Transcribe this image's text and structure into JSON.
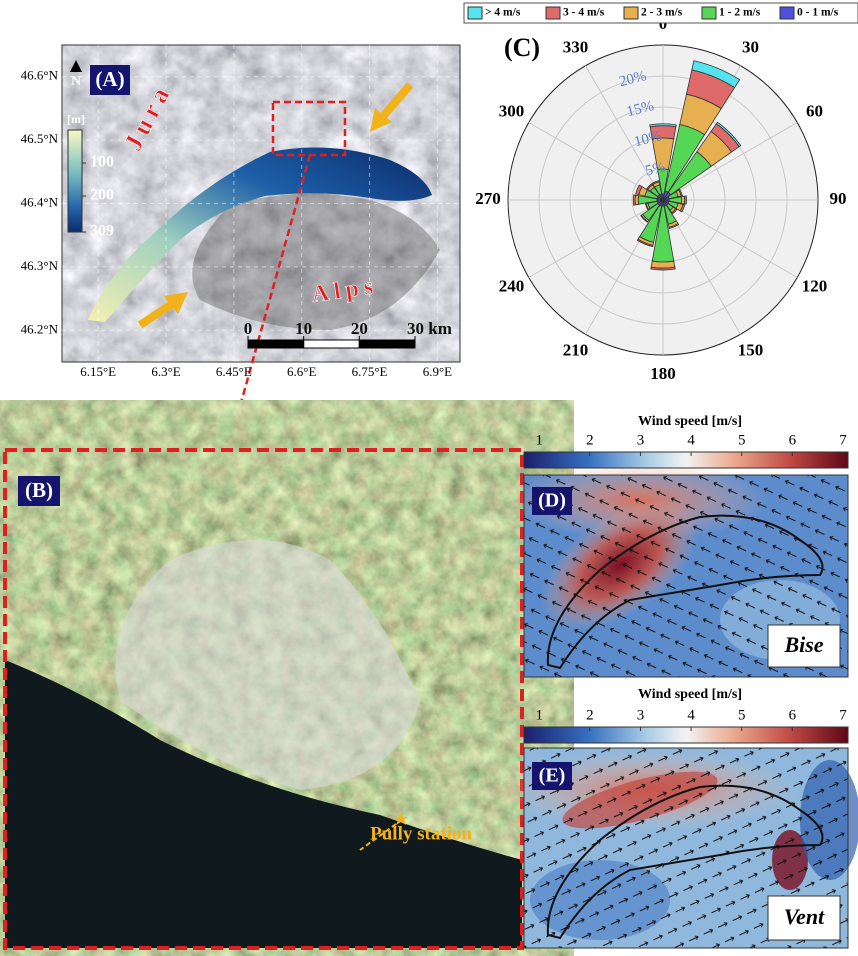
{
  "panel_a": {
    "label": "(A)",
    "north": "N",
    "ranges": [
      "Jura",
      "Alps"
    ],
    "depth_legend": {
      "title": "[m]",
      "lim": [
        0,
        309
      ],
      "ticks": [
        100,
        200,
        309
      ]
    },
    "latlim": [
      46.15,
      46.65
    ],
    "lat_ticks": [
      {
        "value": 46.6,
        "label": "46.6°N"
      },
      {
        "value": 46.5,
        "label": "46.5°N"
      },
      {
        "value": 46.4,
        "label": "46.4°N"
      },
      {
        "value": 46.3,
        "label": "46.3°N"
      },
      {
        "value": 46.2,
        "label": "46.2°N"
      }
    ],
    "lonlim": [
      6.07,
      6.95
    ],
    "lon_ticks": [
      {
        "value": 6.15,
        "label": "6.15°E"
      },
      {
        "value": 6.3,
        "label": "6.3°E"
      },
      {
        "value": 6.45,
        "label": "6.45°E"
      },
      {
        "value": 6.6,
        "label": "6.6°E"
      },
      {
        "value": 6.75,
        "label": "6.75°E"
      },
      {
        "value": 6.9,
        "label": "6.9°E"
      }
    ],
    "scale_bar": {
      "lim": [
        0,
        30
      ],
      "ticks": [
        0,
        10,
        20,
        {
          "value": 30,
          "label": "30 km"
        }
      ]
    }
  },
  "panel_b": {
    "label": "(B)",
    "station": "Pully station"
  },
  "chart_data": {
    "type": "windrose",
    "title": "(C)",
    "directions": [
      0,
      22.5,
      45,
      67.5,
      90,
      112.5,
      135,
      157.5,
      180,
      202.5,
      225,
      247.5,
      270,
      292.5,
      315,
      337.5
    ],
    "angle_ticks": [
      0,
      30,
      60,
      90,
      120,
      150,
      180,
      210,
      240,
      270,
      300,
      330
    ],
    "rlim": [
      0,
      25
    ],
    "rticks": [
      {
        "value": 5,
        "label": "5%"
      },
      {
        "value": 10,
        "label": "10%"
      },
      {
        "value": 15,
        "label": "15%"
      },
      {
        "value": 20,
        "label": "20%"
      }
    ],
    "series": [
      {
        "name": "> 4 m/s",
        "color": "#55e3ee",
        "values": [
          0.3,
          1.5,
          0.3,
          0,
          0,
          0,
          0,
          0,
          0,
          0,
          0,
          0,
          0,
          0,
          0,
          0
        ]
      },
      {
        "name": "3 - 4 m/s",
        "color": "#df6a6a",
        "values": [
          2,
          4,
          1.5,
          0.2,
          0.3,
          0.3,
          0.2,
          0.2,
          0.3,
          0.2,
          0.1,
          0.1,
          0.3,
          0.5,
          0.2,
          0.2
        ]
      },
      {
        "name": "2 - 3 m/s",
        "color": "#e6b050",
        "values": [
          5,
          5,
          4,
          0.5,
          0.5,
          0.8,
          0.5,
          0.5,
          1,
          0.5,
          0.3,
          0.3,
          0.5,
          1,
          0.5,
          0.5
        ]
      },
      {
        "name": "1 - 2 m/s",
        "color": "#55d655",
        "values": [
          4,
          11,
          8,
          1.5,
          2,
          1.5,
          1,
          3,
          9,
          6,
          3,
          1.5,
          3,
          2,
          1.5,
          1.5
        ]
      },
      {
        "name": "0 - 1 m/s",
        "color": "#4f4fe0",
        "values": [
          1,
          1.5,
          1.5,
          1,
          1,
          1,
          1,
          1,
          1,
          1,
          1,
          1,
          1,
          1,
          1,
          1
        ]
      }
    ]
  },
  "panel_d": {
    "label": "(D)",
    "colorbar_title": "Wind speed [m/s]",
    "clim": [
      0.7,
      7.1
    ],
    "ticks": [
      1,
      2,
      3,
      4,
      5,
      6,
      7
    ],
    "regime": "Bise"
  },
  "panel_e": {
    "label": "(E)",
    "colorbar_title": "Wind speed [m/s]",
    "clim": [
      0.7,
      7.1
    ],
    "ticks": [
      1,
      2,
      3,
      4,
      5,
      6,
      7
    ],
    "regime": "Vent"
  }
}
